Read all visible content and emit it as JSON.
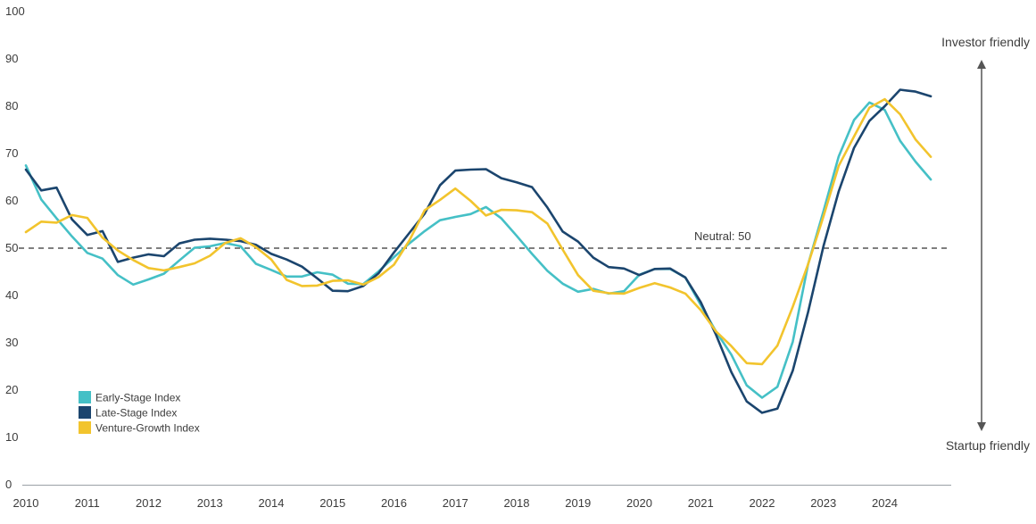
{
  "chart_data": {
    "type": "line",
    "title": "",
    "xlabel": "",
    "ylabel": "",
    "xlim": [
      2010,
      2025
    ],
    "ylim": [
      0,
      100
    ],
    "y_ticks": [
      0,
      10,
      20,
      30,
      40,
      50,
      60,
      70,
      80,
      90,
      100
    ],
    "x_ticks": [
      2010,
      2011,
      2012,
      2013,
      2014,
      2015,
      2016,
      2017,
      2018,
      2019,
      2020,
      2021,
      2022,
      2023,
      2024
    ],
    "x_tick_labels": [
      "2010",
      "2011",
      "2012",
      "2013",
      "2014",
      "2015",
      "2016",
      "2017",
      "2018",
      "2019",
      "2020",
      "2021",
      "2022",
      "2023",
      "2024"
    ],
    "y_tick_labels": [
      "0",
      "10",
      "20",
      "30",
      "40",
      "50",
      "60",
      "70",
      "80",
      "90",
      "100"
    ],
    "reference_line": {
      "value": 50,
      "label": "Neutral: 50",
      "label_x": 2011
    },
    "annotations": {
      "top": "Investor friendly",
      "bottom": "Startup friendly"
    },
    "legend": {
      "position": "bottom-left",
      "items": [
        {
          "label": "Early-Stage Index",
          "color": "#45C0C6"
        },
        {
          "label": "Late-Stage Index",
          "color": "#1B456E"
        },
        {
          "label": "Venture-Growth Index",
          "color": "#F2C42D"
        }
      ]
    },
    "series": [
      {
        "name": "Early-Stage Index",
        "color": "#45C0C6",
        "x": [
          2010,
          2010.25,
          2010.5,
          2010.75,
          2011,
          2011.25,
          2011.5,
          2011.75,
          2012,
          2012.25,
          2012.5,
          2012.75,
          2013,
          2013.25,
          2013.5,
          2013.75,
          2014,
          2014.25,
          2014.5,
          2014.75,
          2015,
          2015.25,
          2015.5,
          2015.75,
          2016,
          2016.25,
          2016.5,
          2016.75,
          2017,
          2017.25,
          2017.5,
          2017.75,
          2018,
          2018.25,
          2018.5,
          2018.75,
          2019,
          2019.25,
          2019.5,
          2019.75,
          2020,
          2020.25,
          2020.5,
          2020.75,
          2021,
          2021.25,
          2021.5,
          2021.75,
          2022,
          2022.25,
          2022.5,
          2022.75,
          2023,
          2023.25,
          2023.5,
          2023.75,
          2024,
          2024.25,
          2024.5,
          2024.75
        ],
        "values": [
          67.5,
          60.3,
          56.3,
          52.5,
          49.0,
          47.8,
          44.3,
          42.3,
          43.4,
          44.6,
          47.4,
          50.1,
          50.4,
          51.1,
          50.4,
          46.7,
          45.4,
          44.0,
          44.0,
          44.9,
          44.4,
          42.5,
          42.4,
          45.1,
          48.1,
          51.0,
          53.6,
          55.9,
          56.6,
          57.2,
          58.7,
          56.3,
          52.6,
          48.8,
          45.2,
          42.5,
          40.8,
          41.4,
          40.4,
          40.9,
          44.4,
          45.6,
          45.6,
          43.8,
          38.0,
          32.4,
          27.5,
          21.0,
          18.4,
          20.7,
          30.2,
          46.6,
          57.8,
          69.4,
          77.1,
          80.8,
          79.2,
          72.7,
          68.3,
          64.5
        ]
      },
      {
        "name": "Late-Stage Index",
        "color": "#1B456E",
        "x": [
          2010,
          2010.25,
          2010.5,
          2010.75,
          2011,
          2011.25,
          2011.5,
          2011.75,
          2012,
          2012.25,
          2012.5,
          2012.75,
          2013,
          2013.25,
          2013.5,
          2013.75,
          2014,
          2014.25,
          2014.5,
          2014.75,
          2015,
          2015.25,
          2015.5,
          2015.75,
          2016,
          2016.25,
          2016.5,
          2016.75,
          2017,
          2017.25,
          2017.5,
          2017.75,
          2018,
          2018.25,
          2018.5,
          2018.75,
          2019,
          2019.25,
          2019.5,
          2019.75,
          2020,
          2020.25,
          2020.5,
          2020.75,
          2021,
          2021.25,
          2021.5,
          2021.75,
          2022,
          2022.25,
          2022.5,
          2022.75,
          2023,
          2023.25,
          2023.5,
          2023.75,
          2024,
          2024.25,
          2024.5,
          2024.75
        ],
        "values": [
          66.6,
          62.2,
          62.8,
          56.1,
          52.8,
          53.6,
          47.1,
          48.0,
          48.7,
          48.3,
          51.0,
          51.8,
          52.0,
          51.8,
          51.5,
          50.7,
          48.8,
          47.6,
          46.1,
          43.6,
          41.0,
          40.9,
          42.0,
          44.7,
          49.1,
          53.2,
          57.3,
          63.3,
          66.4,
          66.6,
          66.7,
          64.8,
          63.9,
          62.9,
          58.6,
          53.5,
          51.4,
          48.0,
          46.0,
          45.7,
          44.3,
          45.6,
          45.7,
          43.8,
          38.6,
          31.7,
          23.8,
          17.6,
          15.2,
          16.1,
          24.1,
          36.5,
          50.4,
          62.0,
          71.2,
          76.9,
          80.0,
          83.5,
          83.1,
          82.1
        ]
      },
      {
        "name": "Venture-Growth Index",
        "color": "#F2C42D",
        "x": [
          2010,
          2010.25,
          2010.5,
          2010.75,
          2011,
          2011.25,
          2011.5,
          2011.75,
          2012,
          2012.25,
          2012.5,
          2012.75,
          2013,
          2013.25,
          2013.5,
          2013.75,
          2014,
          2014.25,
          2014.5,
          2014.75,
          2015,
          2015.25,
          2015.5,
          2015.75,
          2016,
          2016.25,
          2016.5,
          2016.75,
          2017,
          2017.25,
          2017.5,
          2017.75,
          2018,
          2018.25,
          2018.5,
          2018.75,
          2019,
          2019.25,
          2019.5,
          2019.75,
          2020,
          2020.25,
          2020.5,
          2020.75,
          2021,
          2021.25,
          2021.5,
          2021.75,
          2022,
          2022.25,
          2022.5,
          2022.75,
          2023,
          2023.25,
          2023.5,
          2023.75,
          2024,
          2024.25,
          2024.5,
          2024.75
        ],
        "values": [
          53.4,
          55.6,
          55.4,
          57.0,
          56.4,
          52.2,
          49.5,
          47.5,
          45.8,
          45.3,
          46.0,
          46.8,
          48.4,
          51.1,
          52.1,
          50.2,
          47.6,
          43.3,
          42.0,
          42.1,
          43.1,
          43.2,
          42.3,
          43.9,
          46.5,
          51.6,
          58.0,
          60.2,
          62.6,
          60.0,
          56.9,
          58.1,
          58.0,
          57.6,
          55.2,
          49.7,
          44.3,
          41.0,
          40.5,
          40.4,
          41.6,
          42.6,
          41.7,
          40.4,
          36.9,
          32.4,
          29.3,
          25.7,
          25.5,
          29.4,
          37.6,
          46.6,
          56.7,
          67.4,
          73.6,
          79.7,
          81.5,
          78.3,
          73.0,
          69.3
        ]
      }
    ]
  }
}
